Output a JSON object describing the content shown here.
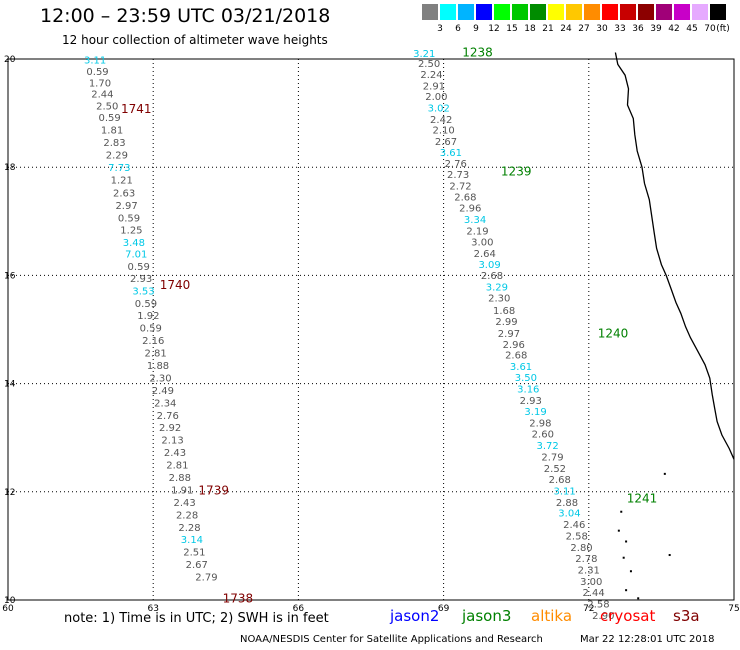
{
  "header": {
    "title": "12:00 – 23:59 UTC 03/21/2018",
    "subtitle": "12 hour collection of altimeter wave heights"
  },
  "legend": {
    "unit": "(ft)",
    "bins": [
      {
        "label": "3",
        "color": "#808080"
      },
      {
        "label": "6",
        "color": "#00ffff"
      },
      {
        "label": "9",
        "color": "#00b4ff"
      },
      {
        "label": "12",
        "color": "#0000ff"
      },
      {
        "label": "15",
        "color": "#00ff00"
      },
      {
        "label": "18",
        "color": "#00c800"
      },
      {
        "label": "21",
        "color": "#008c00"
      },
      {
        "label": "24",
        "color": "#ffff00"
      },
      {
        "label": "27",
        "color": "#ffc800"
      },
      {
        "label": "30",
        "color": "#ff8c00"
      },
      {
        "label": "33",
        "color": "#ff0000"
      },
      {
        "label": "36",
        "color": "#c80000"
      },
      {
        "label": "39",
        "color": "#8c0000"
      },
      {
        "label": "42",
        "color": "#a00078"
      },
      {
        "label": "45",
        "color": "#c800c8"
      },
      {
        "label": "70",
        "color": "#e6aaff"
      },
      {
        "label": "",
        "color": "#000000"
      }
    ]
  },
  "axes": {
    "x_ticks": [
      "60",
      "63",
      "66",
      "69",
      "72",
      "75"
    ],
    "x_values": [
      60,
      63,
      66,
      69,
      72,
      75
    ],
    "y_ticks": [
      "10",
      "12",
      "14",
      "16",
      "18",
      "20"
    ],
    "y_values": [
      10,
      12,
      14,
      16,
      18,
      20
    ],
    "xlim": [
      60,
      75
    ],
    "ylim": [
      10,
      20
    ]
  },
  "tracks": [
    {
      "times": [
        {
          "label": "1741",
          "lon": 62.65,
          "lat": 19.0,
          "color": "#800000"
        },
        {
          "label": "1740",
          "lon": 63.45,
          "lat": 15.75,
          "color": "#800000"
        },
        {
          "label": "1739",
          "lon": 64.25,
          "lat": 11.95,
          "color": "#800000"
        },
        {
          "label": "1738",
          "lon": 64.75,
          "lat": 9.95,
          "color": "#800000"
        }
      ],
      "points": [
        {
          "v": "3.11",
          "lon": 61.8,
          "lat": 19.92,
          "color": "#00c8e6"
        },
        {
          "v": "0.59",
          "lon": 61.85,
          "lat": 19.7,
          "color": "#555555"
        },
        {
          "v": "1.70",
          "lon": 61.9,
          "lat": 19.49,
          "color": "#555555"
        },
        {
          "v": "2.44",
          "lon": 61.95,
          "lat": 19.29,
          "color": "#555555"
        },
        {
          "v": "2.50",
          "lon": 62.05,
          "lat": 19.07,
          "color": "#555555"
        },
        {
          "v": "0.59",
          "lon": 62.1,
          "lat": 18.85,
          "color": "#555555"
        },
        {
          "v": "1.81",
          "lon": 62.15,
          "lat": 18.62,
          "color": "#555555"
        },
        {
          "v": "2.83",
          "lon": 62.2,
          "lat": 18.39,
          "color": "#555555"
        },
        {
          "v": "2.29",
          "lon": 62.25,
          "lat": 18.16,
          "color": "#555555"
        },
        {
          "v": "7.73",
          "lon": 62.3,
          "lat": 17.93,
          "color": "#00c8e6"
        },
        {
          "v": "1.21",
          "lon": 62.35,
          "lat": 17.7,
          "color": "#555555"
        },
        {
          "v": "2.63",
          "lon": 62.4,
          "lat": 17.46,
          "color": "#555555"
        },
        {
          "v": "2.97",
          "lon": 62.45,
          "lat": 17.23,
          "color": "#555555"
        },
        {
          "v": "0.59",
          "lon": 62.5,
          "lat": 17.0,
          "color": "#555555"
        },
        {
          "v": "1.25",
          "lon": 62.55,
          "lat": 16.77,
          "color": "#555555"
        },
        {
          "v": "3.48",
          "lon": 62.6,
          "lat": 16.54,
          "color": "#00c8e6"
        },
        {
          "v": "7.01",
          "lon": 62.65,
          "lat": 16.33,
          "color": "#00c8e6"
        },
        {
          "v": "0.59",
          "lon": 62.7,
          "lat": 16.1,
          "color": "#555555"
        },
        {
          "v": "2.93",
          "lon": 62.75,
          "lat": 15.88,
          "color": "#555555"
        },
        {
          "v": "3.53",
          "lon": 62.8,
          "lat": 15.65,
          "color": "#00c8e6"
        },
        {
          "v": "0.59",
          "lon": 62.85,
          "lat": 15.42,
          "color": "#555555"
        },
        {
          "v": "1.92",
          "lon": 62.9,
          "lat": 15.19,
          "color": "#555555"
        },
        {
          "v": "0.59",
          "lon": 62.95,
          "lat": 14.96,
          "color": "#555555"
        },
        {
          "v": "2.16",
          "lon": 63.0,
          "lat": 14.73,
          "color": "#555555"
        },
        {
          "v": "2.81",
          "lon": 63.05,
          "lat": 14.5,
          "color": "#555555"
        },
        {
          "v": "1.88",
          "lon": 63.1,
          "lat": 14.27,
          "color": "#555555"
        },
        {
          "v": "2.30",
          "lon": 63.15,
          "lat": 14.04,
          "color": "#555555"
        },
        {
          "v": "2.49",
          "lon": 63.2,
          "lat": 13.81,
          "color": "#555555"
        },
        {
          "v": "2.34",
          "lon": 63.25,
          "lat": 13.58,
          "color": "#555555"
        },
        {
          "v": "2.76",
          "lon": 63.3,
          "lat": 13.35,
          "color": "#555555"
        },
        {
          "v": "2.92",
          "lon": 63.35,
          "lat": 13.12,
          "color": "#555555"
        },
        {
          "v": "2.13",
          "lon": 63.4,
          "lat": 12.89,
          "color": "#555555"
        },
        {
          "v": "2.43",
          "lon": 63.45,
          "lat": 12.66,
          "color": "#555555"
        },
        {
          "v": "2.81",
          "lon": 63.5,
          "lat": 12.43,
          "color": "#555555"
        },
        {
          "v": "2.88",
          "lon": 63.55,
          "lat": 12.2,
          "color": "#555555"
        },
        {
          "v": "1.91",
          "lon": 63.6,
          "lat": 11.97,
          "color": "#555555"
        },
        {
          "v": "2.43",
          "lon": 63.65,
          "lat": 11.74,
          "color": "#555555"
        },
        {
          "v": "2.28",
          "lon": 63.7,
          "lat": 11.51,
          "color": "#555555"
        },
        {
          "v": "2.28",
          "lon": 63.75,
          "lat": 11.28,
          "color": "#555555"
        },
        {
          "v": "3.14",
          "lon": 63.8,
          "lat": 11.05,
          "color": "#00c8e6"
        },
        {
          "v": "2.51",
          "lon": 63.85,
          "lat": 10.82,
          "color": "#555555"
        },
        {
          "v": "2.67",
          "lon": 63.9,
          "lat": 10.59,
          "color": "#555555"
        },
        {
          "v": "2.79",
          "lon": 64.1,
          "lat": 10.36,
          "color": "#555555"
        }
      ]
    },
    {
      "times": [
        {
          "label": "1238",
          "lon": 69.7,
          "lat": 20.05,
          "color": "#008000"
        },
        {
          "label": "1239",
          "lon": 70.5,
          "lat": 17.85,
          "color": "#008000"
        },
        {
          "label": "1240",
          "lon": 72.5,
          "lat": 14.85,
          "color": "#008000"
        },
        {
          "label": "1241",
          "lon": 73.1,
          "lat": 11.8,
          "color": "#008000"
        }
      ],
      "points": [
        {
          "v": "3.21",
          "lon": 68.6,
          "lat": 20.04,
          "color": "#00c8e6"
        },
        {
          "v": "2.50",
          "lon": 68.7,
          "lat": 19.85,
          "color": "#555555"
        },
        {
          "v": "2.24",
          "lon": 68.75,
          "lat": 19.65,
          "color": "#555555"
        },
        {
          "v": "2.91",
          "lon": 68.8,
          "lat": 19.44,
          "color": "#555555"
        },
        {
          "v": "2.00",
          "lon": 68.85,
          "lat": 19.24,
          "color": "#555555"
        },
        {
          "v": "3.02",
          "lon": 68.9,
          "lat": 19.03,
          "color": "#00c8e6"
        },
        {
          "v": "2.42",
          "lon": 68.95,
          "lat": 18.82,
          "color": "#555555"
        },
        {
          "v": "2.10",
          "lon": 69.0,
          "lat": 18.62,
          "color": "#555555"
        },
        {
          "v": "2.67",
          "lon": 69.05,
          "lat": 18.41,
          "color": "#555555"
        },
        {
          "v": "3.61",
          "lon": 69.15,
          "lat": 18.21,
          "color": "#00c8e6"
        },
        {
          "v": "2.76",
          "lon": 69.25,
          "lat": 18.0,
          "color": "#555555"
        },
        {
          "v": "2.73",
          "lon": 69.3,
          "lat": 17.8,
          "color": "#555555"
        },
        {
          "v": "2.72",
          "lon": 69.35,
          "lat": 17.59,
          "color": "#555555"
        },
        {
          "v": "2.68",
          "lon": 69.45,
          "lat": 17.38,
          "color": "#555555"
        },
        {
          "v": "2.96",
          "lon": 69.55,
          "lat": 17.18,
          "color": "#555555"
        },
        {
          "v": "3.34",
          "lon": 69.65,
          "lat": 16.97,
          "color": "#00c8e6"
        },
        {
          "v": "2.19",
          "lon": 69.7,
          "lat": 16.76,
          "color": "#555555"
        },
        {
          "v": "3.00",
          "lon": 69.8,
          "lat": 16.55,
          "color": "#555555"
        },
        {
          "v": "2.64",
          "lon": 69.85,
          "lat": 16.34,
          "color": "#555555"
        },
        {
          "v": "3.09",
          "lon": 69.95,
          "lat": 16.14,
          "color": "#00c8e6"
        },
        {
          "v": "2.68",
          "lon": 70.0,
          "lat": 15.93,
          "color": "#555555"
        },
        {
          "v": "3.29",
          "lon": 70.1,
          "lat": 15.72,
          "color": "#00c8e6"
        },
        {
          "v": "2.30",
          "lon": 70.15,
          "lat": 15.52,
          "color": "#555555"
        },
        {
          "v": "1.68",
          "lon": 70.25,
          "lat": 15.29,
          "color": "#555555"
        },
        {
          "v": "2.99",
          "lon": 70.3,
          "lat": 15.08,
          "color": "#555555"
        },
        {
          "v": "2.97",
          "lon": 70.35,
          "lat": 14.86,
          "color": "#555555"
        },
        {
          "v": "2.96",
          "lon": 70.45,
          "lat": 14.66,
          "color": "#555555"
        },
        {
          "v": "2.68",
          "lon": 70.5,
          "lat": 14.46,
          "color": "#555555"
        },
        {
          "v": "3.61",
          "lon": 70.6,
          "lat": 14.25,
          "color": "#00c8e6"
        },
        {
          "v": "3.50",
          "lon": 70.7,
          "lat": 14.05,
          "color": "#00c8e6"
        },
        {
          "v": "3.16",
          "lon": 70.75,
          "lat": 13.84,
          "color": "#00c8e6"
        },
        {
          "v": "2.93",
          "lon": 70.8,
          "lat": 13.62,
          "color": "#555555"
        },
        {
          "v": "3.19",
          "lon": 70.9,
          "lat": 13.42,
          "color": "#00c8e6"
        },
        {
          "v": "2.98",
          "lon": 71.0,
          "lat": 13.21,
          "color": "#555555"
        },
        {
          "v": "2.60",
          "lon": 71.05,
          "lat": 13.0,
          "color": "#555555"
        },
        {
          "v": "3.72",
          "lon": 71.15,
          "lat": 12.79,
          "color": "#00c8e6"
        },
        {
          "v": "2.79",
          "lon": 71.25,
          "lat": 12.58,
          "color": "#555555"
        },
        {
          "v": "2.52",
          "lon": 71.3,
          "lat": 12.37,
          "color": "#555555"
        },
        {
          "v": "2.68",
          "lon": 71.4,
          "lat": 12.16,
          "color": "#555555"
        },
        {
          "v": "3.11",
          "lon": 71.5,
          "lat": 11.95,
          "color": "#00c8e6"
        },
        {
          "v": "2.88",
          "lon": 71.55,
          "lat": 11.74,
          "color": "#555555"
        },
        {
          "v": "3.04",
          "lon": 71.6,
          "lat": 11.54,
          "color": "#00c8e6"
        },
        {
          "v": "2.46",
          "lon": 71.7,
          "lat": 11.33,
          "color": "#555555"
        },
        {
          "v": "2.58",
          "lon": 71.75,
          "lat": 11.12,
          "color": "#555555"
        },
        {
          "v": "2.80",
          "lon": 71.85,
          "lat": 10.91,
          "color": "#555555"
        },
        {
          "v": "2.78",
          "lon": 71.95,
          "lat": 10.7,
          "color": "#555555"
        },
        {
          "v": "2.31",
          "lon": 72.0,
          "lat": 10.49,
          "color": "#555555"
        },
        {
          "v": "3.00",
          "lon": 72.05,
          "lat": 10.28,
          "color": "#555555"
        },
        {
          "v": "2.44",
          "lon": 72.1,
          "lat": 10.07,
          "color": "#555555"
        },
        {
          "v": "2.58",
          "lon": 72.2,
          "lat": 9.86,
          "color": "#555555"
        },
        {
          "v": "2.90",
          "lon": 72.3,
          "lat": 9.65,
          "color": "#555555"
        }
      ]
    }
  ],
  "coastline": [
    [
      72.55,
      20.12
    ],
    [
      72.6,
      19.9
    ],
    [
      72.75,
      19.7
    ],
    [
      72.82,
      19.45
    ],
    [
      72.8,
      19.15
    ],
    [
      72.92,
      18.9
    ],
    [
      72.95,
      18.6
    ],
    [
      73.0,
      18.3
    ],
    [
      73.1,
      18.0
    ],
    [
      73.15,
      17.7
    ],
    [
      73.25,
      17.4
    ],
    [
      73.3,
      17.1
    ],
    [
      73.35,
      16.8
    ],
    [
      73.4,
      16.5
    ],
    [
      73.5,
      16.2
    ],
    [
      73.6,
      16.0
    ],
    [
      73.7,
      15.75
    ],
    [
      73.8,
      15.5
    ],
    [
      73.9,
      15.3
    ],
    [
      74.0,
      15.05
    ],
    [
      74.1,
      14.85
    ],
    [
      74.25,
      14.6
    ],
    [
      74.4,
      14.35
    ],
    [
      74.5,
      14.1
    ],
    [
      74.55,
      13.8
    ],
    [
      74.6,
      13.55
    ],
    [
      74.65,
      13.3
    ],
    [
      74.75,
      13.05
    ],
    [
      74.9,
      12.8
    ],
    [
      75.0,
      12.6
    ]
  ],
  "islands": [
    [
      72.65,
      11.65
    ],
    [
      72.6,
      11.3
    ],
    [
      72.75,
      11.1
    ],
    [
      72.7,
      10.8
    ],
    [
      72.85,
      10.55
    ],
    [
      73.65,
      10.85
    ],
    [
      73.0,
      10.05
    ],
    [
      72.75,
      10.2
    ],
    [
      73.55,
      12.35
    ]
  ],
  "bottom": {
    "note": "note: 1) Time is in UTC; 2) SWH is in feet",
    "missions": [
      {
        "name": "jason2",
        "color": "#0000ff"
      },
      {
        "name": "jason3",
        "color": "#008000"
      },
      {
        "name": "altika",
        "color": "#ff8c00"
      },
      {
        "name": "cryosat",
        "color": "#ff0000"
      },
      {
        "name": "s3a",
        "color": "#800000"
      }
    ],
    "credit": "NOAA/NESDIS Center for Satellite Applications and Research",
    "timestamp": "Mar 22 12:28:01 UTC 2018"
  }
}
